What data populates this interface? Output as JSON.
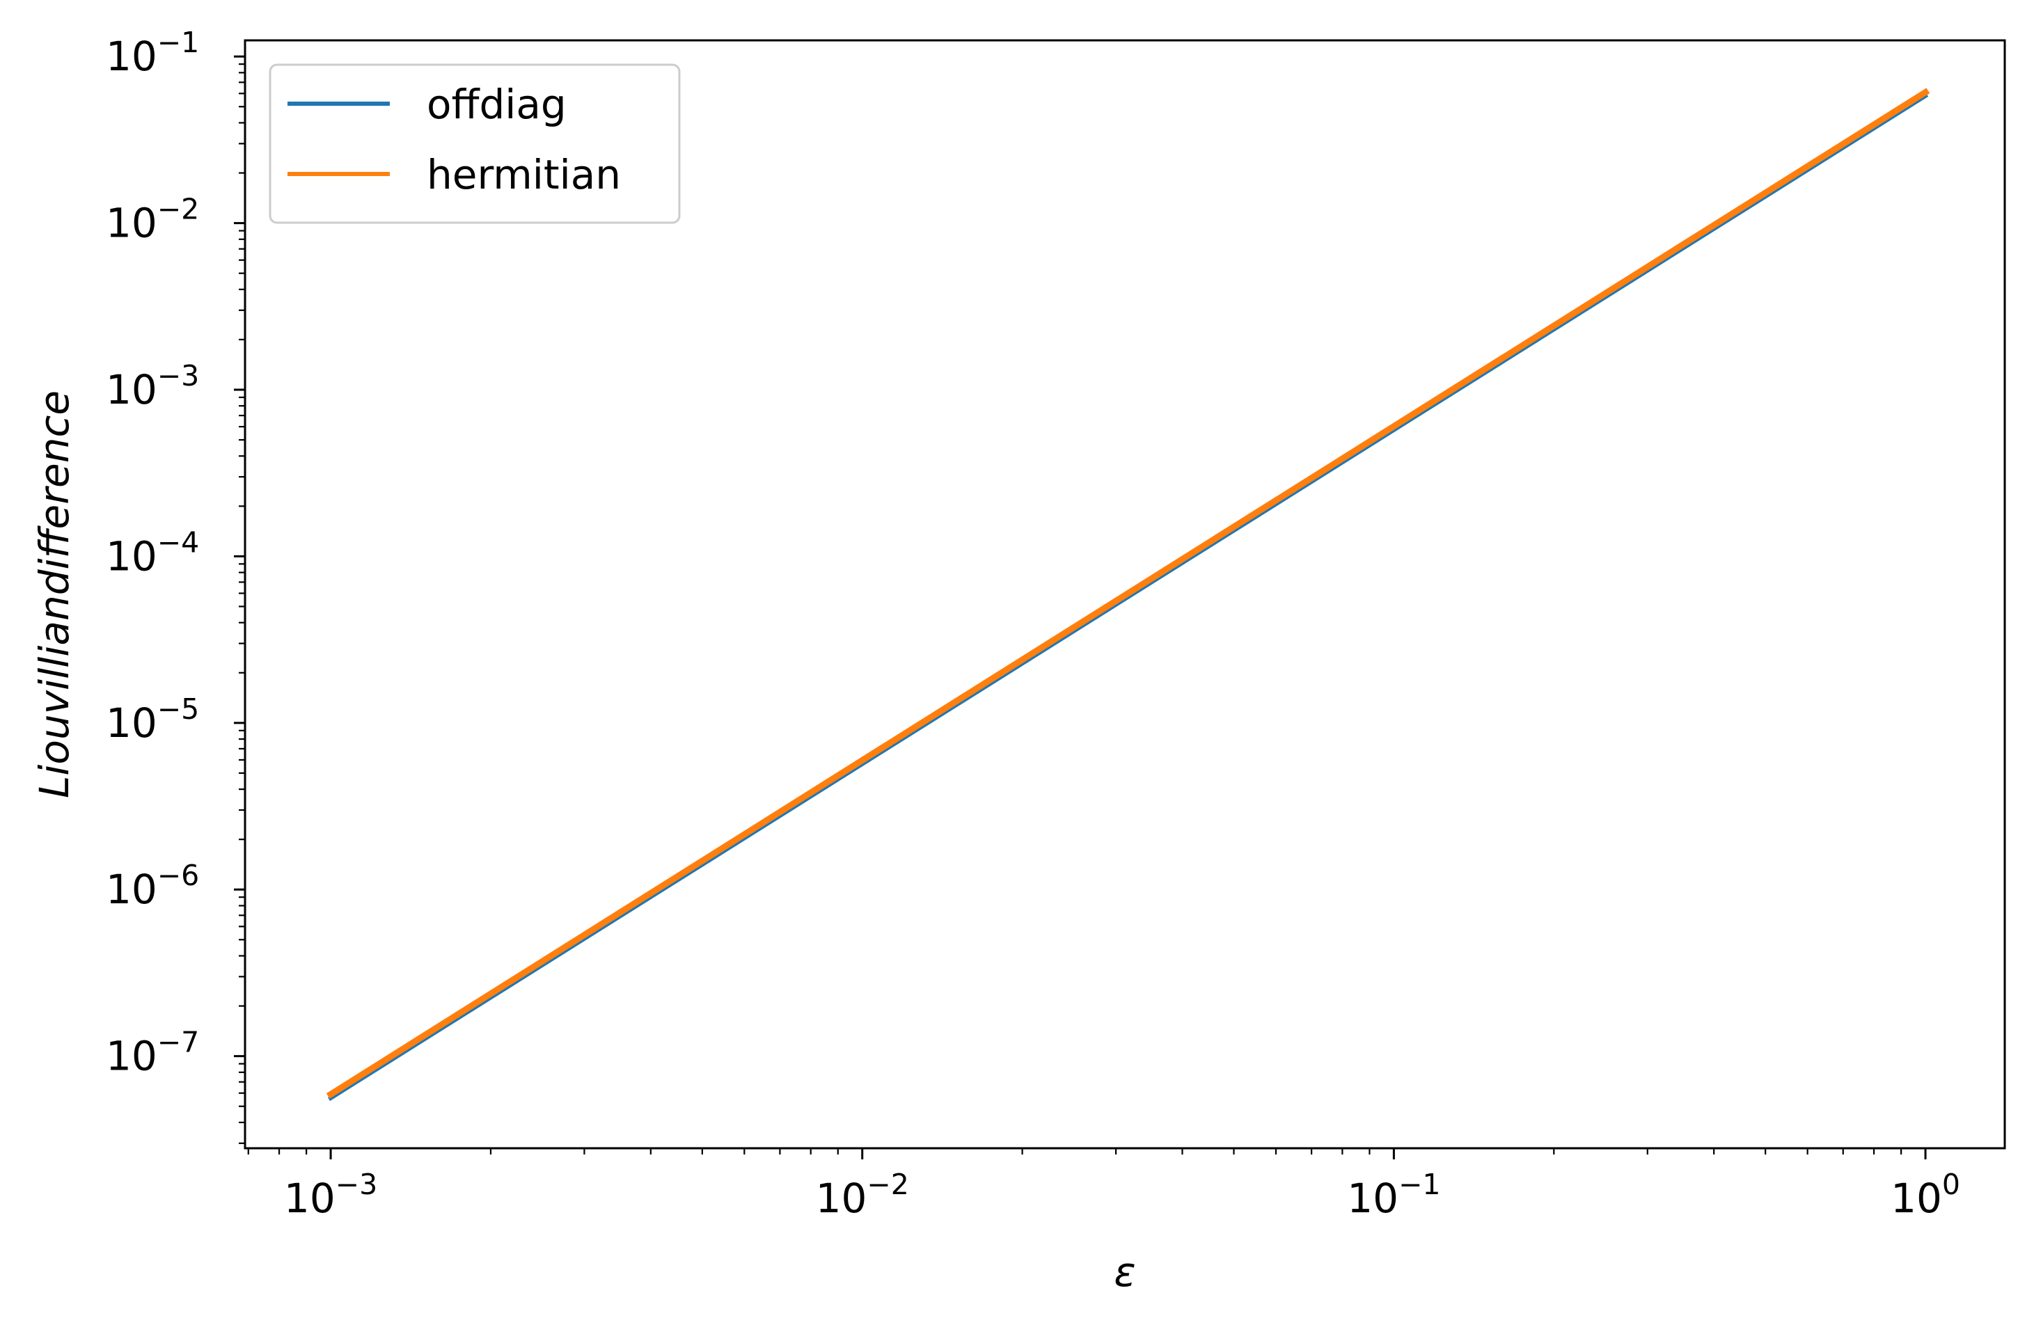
{
  "chart_data": {
    "type": "line",
    "xscale": "log",
    "yscale": "log",
    "xlabel": "ε",
    "ylabel": "Liouvilliandifference",
    "xlim": [
      0.00069,
      1.41
    ],
    "ylim": [
      2.8e-08,
      0.125
    ],
    "x_ticks": [
      {
        "value": 0.001,
        "base": "10",
        "exp": "−3"
      },
      {
        "value": 0.01,
        "base": "10",
        "exp": "−2"
      },
      {
        "value": 0.1,
        "base": "10",
        "exp": "−1"
      },
      {
        "value": 1,
        "base": "10",
        "exp": "0"
      }
    ],
    "y_ticks": [
      {
        "value": 1e-07,
        "base": "10",
        "exp": "−7"
      },
      {
        "value": 1e-06,
        "base": "10",
        "exp": "−6"
      },
      {
        "value": 1e-05,
        "base": "10",
        "exp": "−5"
      },
      {
        "value": 0.0001,
        "base": "10",
        "exp": "−4"
      },
      {
        "value": 0.001,
        "base": "10",
        "exp": "−3"
      },
      {
        "value": 0.01,
        "base": "10",
        "exp": "−2"
      },
      {
        "value": 0.1,
        "base": "10",
        "exp": "−1"
      }
    ],
    "grid": false,
    "legend_position": "top-left",
    "series": [
      {
        "name": "offdiag",
        "color": "#1f77b4",
        "x": [
          0.001,
          1
        ],
        "y": [
          5.6e-08,
          0.058
        ]
      },
      {
        "name": "hermitian",
        "color": "#ff7f0e",
        "x": [
          0.001,
          1
        ],
        "y": [
          5.9e-08,
          0.061
        ]
      }
    ]
  }
}
